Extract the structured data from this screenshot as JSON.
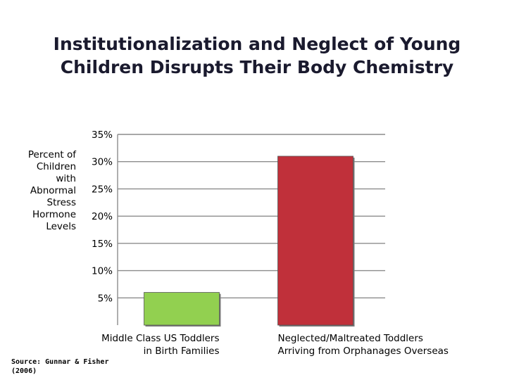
{
  "title": {
    "line1": "Institutionalization and Neglect of Young",
    "line2": "Children Disrupts Their Body Chemistry"
  },
  "source": "Source: Gunnar & Fisher\n(2006)",
  "chart_data": {
    "type": "bar",
    "ylabel": "Percent of\nChildren\nwith\nAbnormal\nStress\nHormone\nLevels",
    "xlabel": "",
    "ylim": [
      0,
      35
    ],
    "yticks": [
      {
        "value": 35,
        "label": "35%"
      },
      {
        "value": 30,
        "label": "30%"
      },
      {
        "value": 25,
        "label": "25%"
      },
      {
        "value": 20,
        "label": "20%"
      },
      {
        "value": 15,
        "label": "15%"
      },
      {
        "value": 10,
        "label": "10%"
      },
      {
        "value": 5,
        "label": "5%"
      }
    ],
    "grid": true,
    "categories": [
      [
        "Middle Class US Toddlers",
        "in Birth Families"
      ],
      [
        "Neglected/Maltreated Toddlers",
        "Arriving from Orphanages Overseas"
      ]
    ],
    "values": [
      6,
      31
    ],
    "colors": [
      "#92d050",
      "#c0303a"
    ]
  }
}
